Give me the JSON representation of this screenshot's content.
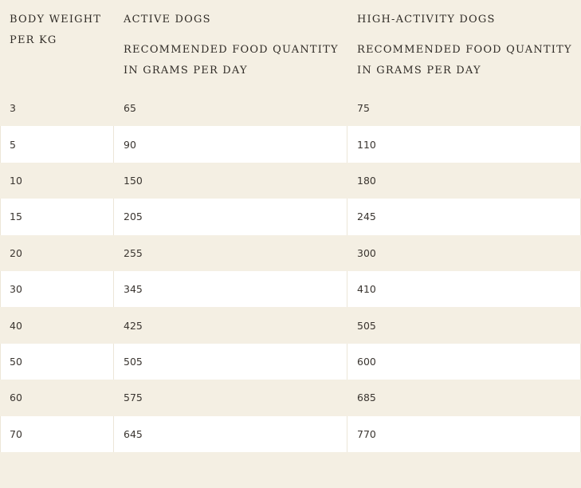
{
  "table": {
    "headers": {
      "weight": {
        "line1": "BODY WEIGHT",
        "line2": "PER KG"
      },
      "active": {
        "title": "ACTIVE DOGS",
        "sub1": "RECOMMENDED FOOD QUANTITY",
        "sub2": "IN GRAMS PER DAY"
      },
      "high": {
        "title": "HIGH-ACTIVITY DOGS",
        "sub1": "RECOMMENDED FOOD QUANTITY",
        "sub2": "IN GRAMS PER DAY"
      }
    },
    "rows": [
      {
        "weight": "3",
        "active": "65",
        "high": "75"
      },
      {
        "weight": "5",
        "active": "90",
        "high": "110"
      },
      {
        "weight": "10",
        "active": "150",
        "high": "180"
      },
      {
        "weight": "15",
        "active": "205",
        "high": "245"
      },
      {
        "weight": "20",
        "active": "255",
        "high": "300"
      },
      {
        "weight": "30",
        "active": "345",
        "high": "410"
      },
      {
        "weight": "40",
        "active": "425",
        "high": "505"
      },
      {
        "weight": "50",
        "active": "505",
        "high": "600"
      },
      {
        "weight": "60",
        "active": "575",
        "high": "685"
      },
      {
        "weight": "70",
        "active": "645",
        "high": "770"
      }
    ]
  },
  "colors": {
    "band": "#f4efe3",
    "white": "#ffffff",
    "text": "#3a3530"
  }
}
